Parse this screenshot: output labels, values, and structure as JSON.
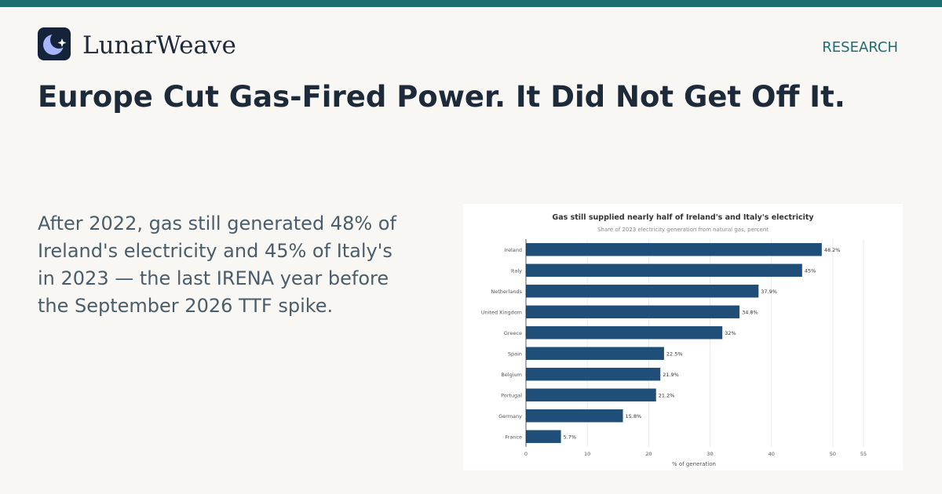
{
  "brand": {
    "name": "LunarWeave",
    "logo_icon": "moon-star-icon"
  },
  "header": {
    "section_label": "RESEARCH"
  },
  "article": {
    "headline": "Europe Cut Gas-Fired Power. It Did Not Get Off It.",
    "dek": "After 2022, gas still generated 48% of Ireland's electricity and 45% of Italy's in 2023 — the last IRENA year before the September 2026 TTF spike."
  },
  "colors": {
    "accent": "#1c6e70",
    "bar": "#1f4e79",
    "text_dark": "#1c2a3a",
    "text_muted": "#4a5d6b"
  },
  "chart_data": {
    "type": "bar",
    "orientation": "horizontal",
    "title": "Gas still supplied nearly half of Ireland's and Italy's electricity",
    "subtitle": "Share of 2023 electricity generation from natural gas, percent",
    "xlabel": "% of generation",
    "ylabel": "",
    "categories": [
      "Ireland",
      "Italy",
      "Netherlands",
      "United Kingdom",
      "Greece",
      "Spain",
      "Belgium",
      "Portugal",
      "Germany",
      "France"
    ],
    "values": [
      48.2,
      45,
      37.9,
      34.8,
      32,
      22.5,
      21.9,
      21.2,
      15.8,
      5.7
    ],
    "value_labels": [
      "48.2%",
      "45%",
      "37.9%",
      "34.8%",
      "32%",
      "22.5%",
      "21.9%",
      "21.2%",
      "15.8%",
      "5.7%"
    ],
    "xlim": [
      0,
      55
    ],
    "xticks": [
      0,
      10,
      20,
      30,
      40,
      50,
      55
    ],
    "grid": true,
    "legend": "none"
  }
}
